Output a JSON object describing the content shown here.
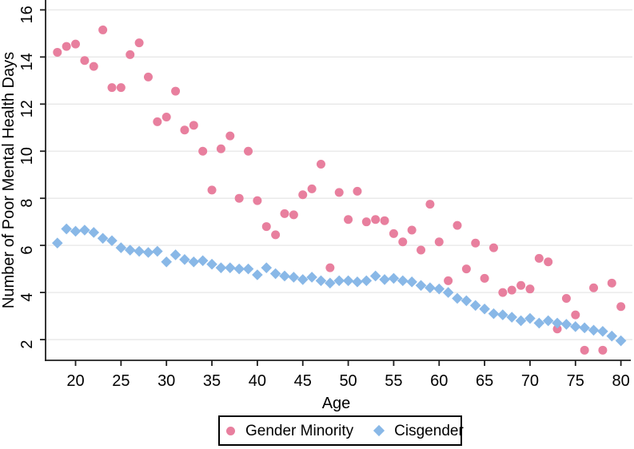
{
  "figure": {
    "background": "#ffffff",
    "axis_color": "#1f1f1f",
    "grid_color": "#e7e7e7",
    "text_color": "#000000"
  },
  "chart_data": {
    "type": "scatter",
    "title": "",
    "xlabel": "Age",
    "ylabel": "Number of Poor Mental Health Days",
    "xlim": [
      16.7,
      81.0
    ],
    "ylim": [
      1.12,
      16.42
    ],
    "x_ticks": [
      20,
      25,
      30,
      35,
      40,
      45,
      50,
      55,
      60,
      65,
      70,
      75,
      80
    ],
    "y_ticks": [
      2,
      4,
      6,
      8,
      10,
      12,
      14,
      16
    ],
    "grid": "horizontal-only",
    "legend_position": "bottom-center",
    "x": [
      18,
      19,
      20,
      21,
      22,
      23,
      24,
      25,
      26,
      27,
      28,
      29,
      30,
      31,
      32,
      33,
      34,
      35,
      36,
      37,
      38,
      39,
      40,
      41,
      42,
      43,
      44,
      45,
      46,
      47,
      48,
      49,
      50,
      51,
      52,
      53,
      54,
      55,
      56,
      57,
      58,
      59,
      60,
      61,
      62,
      63,
      64,
      65,
      66,
      67,
      68,
      69,
      70,
      71,
      72,
      73,
      74,
      75,
      76,
      77,
      78,
      79,
      80
    ],
    "series": [
      {
        "name": "Gender Minority",
        "marker": "circle",
        "color": "#e87f9e",
        "values": [
          14.2,
          14.45,
          14.55,
          13.85,
          13.6,
          15.15,
          12.7,
          12.7,
          14.1,
          14.6,
          13.15,
          11.25,
          11.45,
          12.55,
          10.9,
          11.1,
          10.0,
          8.35,
          10.1,
          10.65,
          8.0,
          10.0,
          7.9,
          6.8,
          6.45,
          7.35,
          7.3,
          8.15,
          8.4,
          9.45,
          5.05,
          8.25,
          7.1,
          8.3,
          7.0,
          7.1,
          7.05,
          6.5,
          6.15,
          6.65,
          5.8,
          7.75,
          6.15,
          4.5,
          6.85,
          5.0,
          6.1,
          4.6,
          5.9,
          4.0,
          4.1,
          4.3,
          4.15,
          5.45,
          5.3,
          2.45,
          3.75,
          3.05,
          1.55,
          4.2,
          1.55,
          4.4,
          3.4
        ]
      },
      {
        "name": "Cisgender",
        "marker": "diamond",
        "color": "#89b8e7",
        "values": [
          6.1,
          6.7,
          6.6,
          6.65,
          6.55,
          6.3,
          6.2,
          5.9,
          5.8,
          5.75,
          5.7,
          5.75,
          5.3,
          5.6,
          5.4,
          5.3,
          5.35,
          5.2,
          5.05,
          5.05,
          5.0,
          5.0,
          4.75,
          5.05,
          4.8,
          4.7,
          4.65,
          4.55,
          4.65,
          4.5,
          4.4,
          4.5,
          4.5,
          4.45,
          4.5,
          4.7,
          4.55,
          4.6,
          4.5,
          4.45,
          4.3,
          4.2,
          4.15,
          4.0,
          3.75,
          3.65,
          3.45,
          3.3,
          3.1,
          3.05,
          2.95,
          2.8,
          2.9,
          2.7,
          2.8,
          2.7,
          2.65,
          2.55,
          2.5,
          2.4,
          2.35,
          2.15,
          1.95
        ]
      }
    ]
  },
  "legend": {
    "items": [
      {
        "label": "Gender Minority"
      },
      {
        "label": "Cisgender"
      }
    ]
  }
}
